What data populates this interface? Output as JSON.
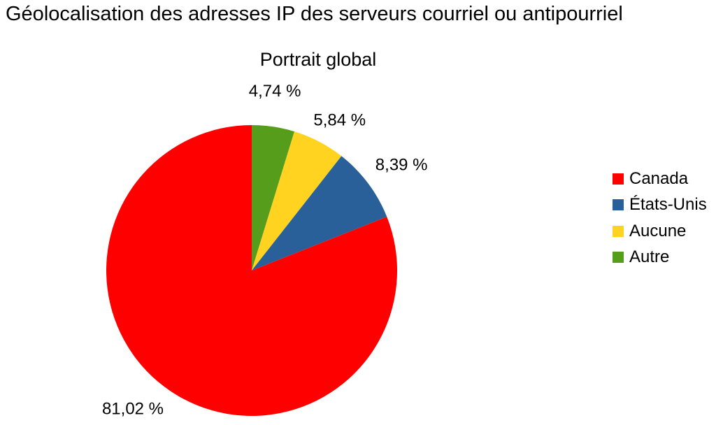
{
  "chart_data": {
    "type": "pie",
    "title": "Géolocalisation des adresses IP des serveurs courriel ou antipourriel",
    "subtitle": "Portrait global",
    "slices": [
      {
        "name": "Canada",
        "value": 81.02,
        "label": "81,02 %",
        "color": "#ff0000"
      },
      {
        "name": "États-Unis",
        "value": 8.39,
        "label": "8,39 %",
        "color": "#2a6099"
      },
      {
        "name": "Aucune",
        "value": 5.84,
        "label": "5,84 %",
        "color": "#ffd320"
      },
      {
        "name": "Autre",
        "value": 4.74,
        "label": "4,74 %",
        "color": "#579d1c"
      }
    ],
    "legend_position": "right"
  }
}
